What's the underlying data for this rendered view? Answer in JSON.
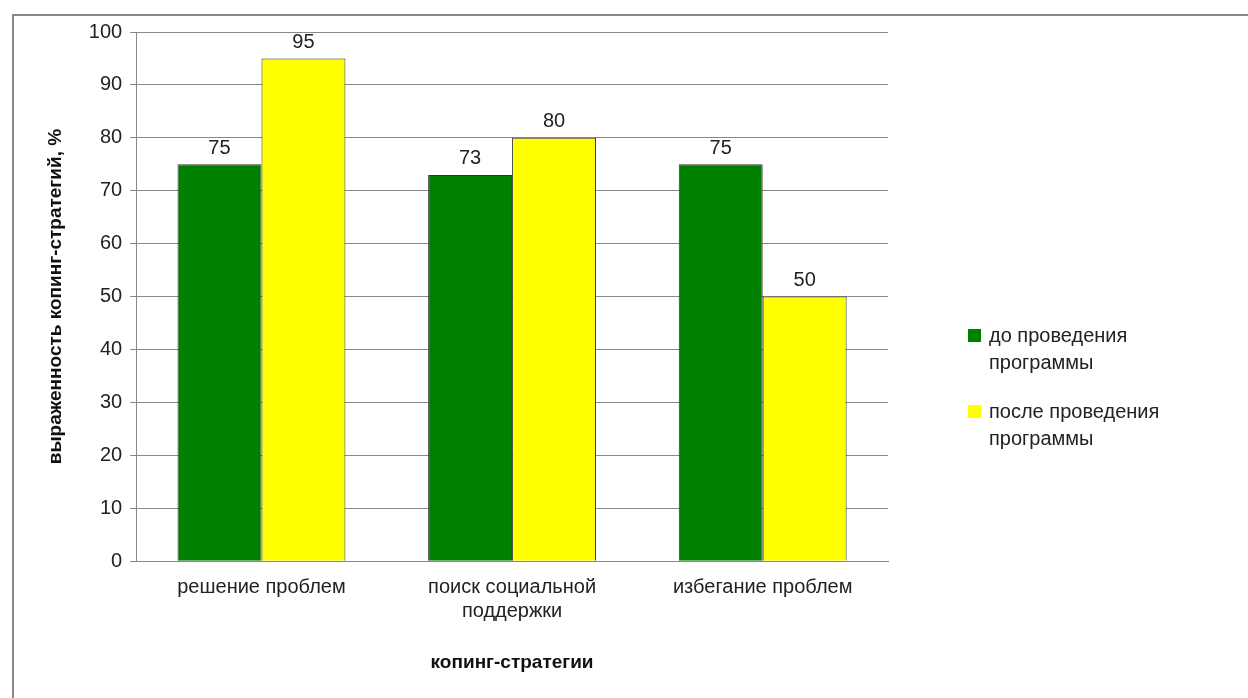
{
  "chart_data": {
    "type": "bar",
    "xlabel": "копинг-стратегии",
    "ylabel": "выраженность копинг-стратегий, %",
    "categories": [
      "решение проблем",
      "поиск социальной поддержки",
      "избегание проблем"
    ],
    "series": [
      {
        "name": "до проведения программы",
        "color": "#008000",
        "values": [
          75,
          73,
          75
        ]
      },
      {
        "name": "после проведения программы",
        "color": "#ffff00",
        "values": [
          95,
          80,
          50
        ]
      }
    ],
    "ylim": [
      0,
      100
    ],
    "yticks": [
      0,
      10,
      20,
      30,
      40,
      50,
      60,
      70,
      80,
      90,
      100
    ],
    "grid": "y",
    "legend": "right",
    "data_labels": true
  }
}
